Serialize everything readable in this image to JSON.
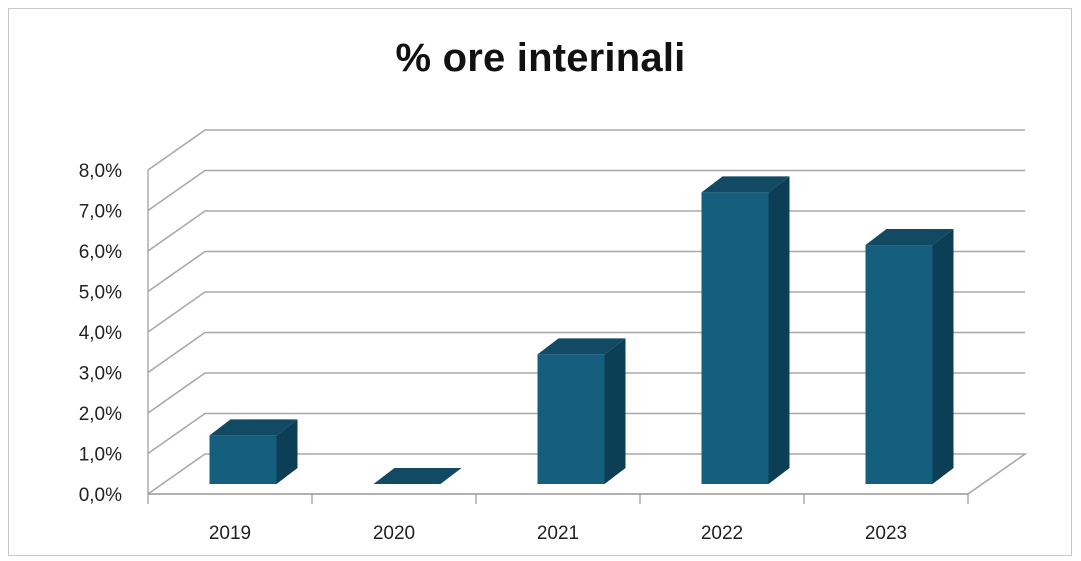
{
  "chart_data": {
    "type": "bar",
    "title": "% ore interinali",
    "xlabel": "",
    "ylabel": "",
    "categories": [
      "2019",
      "2020",
      "2021",
      "2022",
      "2023"
    ],
    "values": [
      1.2,
      0.0,
      3.2,
      7.2,
      5.9
    ],
    "ylim": [
      0,
      8
    ],
    "ytick_step": 1,
    "ytick_labels": [
      "0,0%",
      "1,0%",
      "2,0%",
      "3,0%",
      "4,0%",
      "5,0%",
      "6,0%",
      "7,0%",
      "8,0%"
    ],
    "grid": true,
    "legend": "none",
    "colors": {
      "bar_front": "#155e7e",
      "bar_side": "#0c3e55",
      "bar_top": "#124a64",
      "grid": "#a8a8a8",
      "axis": "#999999"
    }
  }
}
